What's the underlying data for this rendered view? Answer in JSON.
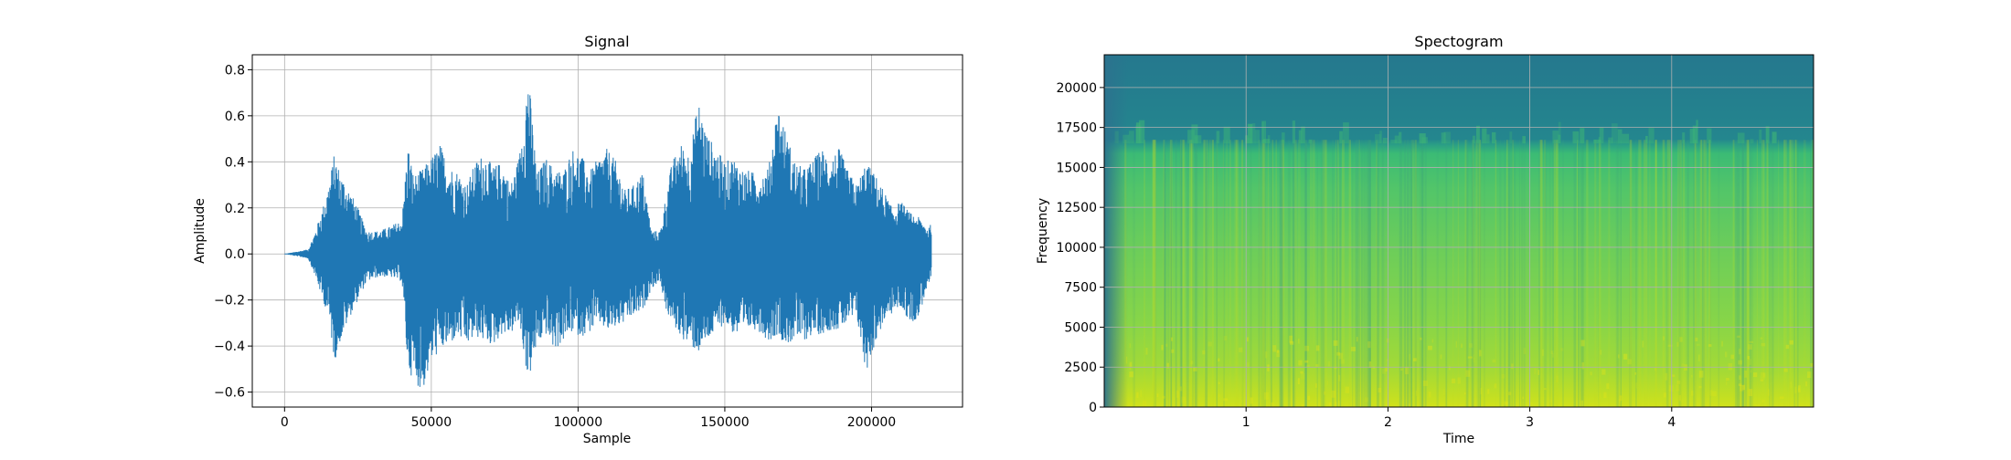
{
  "chart_data": [
    {
      "type": "line",
      "title": "Signal",
      "xlabel": "Sample",
      "ylabel": "Amplitude",
      "xlim": [
        -11000,
        231000
      ],
      "ylim": [
        -0.665,
        0.865
      ],
      "xticks": [
        0,
        50000,
        100000,
        150000,
        200000
      ],
      "xtick_labels": [
        "0",
        "50000",
        "100000",
        "150000",
        "200000"
      ],
      "yticks": [
        -0.6,
        -0.4,
        -0.2,
        0.0,
        0.2,
        0.4,
        0.6,
        0.8
      ],
      "ytick_labels": [
        "−0.6",
        "−0.4",
        "−0.2",
        "0.0",
        "0.2",
        "0.4",
        "0.6",
        "0.8"
      ],
      "grid": true,
      "color": "#1f77b4",
      "series": [
        {
          "x": [
            0,
            8000,
            10000,
            13000,
            15000,
            17000,
            19000,
            22000,
            25000,
            28000,
            32000,
            36000,
            40000,
            42000,
            44000,
            47000,
            50000,
            53000,
            56000,
            59000,
            62000,
            65000,
            68000,
            71000,
            74000,
            77000,
            80000,
            83000,
            86000,
            89000,
            92000,
            95000,
            98000,
            101000,
            104000,
            107000,
            110000,
            113000,
            116000,
            119000,
            122000,
            125000,
            128000,
            130000,
            132000,
            135000,
            138000,
            141000,
            144000,
            147000,
            150000,
            153000,
            156000,
            159000,
            162000,
            165000,
            168000,
            171000,
            174000,
            177000,
            180000,
            183000,
            186000,
            189000,
            192000,
            195000,
            198000,
            201000,
            204000,
            207000,
            210000,
            213000,
            216000,
            219000,
            220500
          ],
          "envelope_upper": [
            0.0,
            0.02,
            0.08,
            0.2,
            0.3,
            0.44,
            0.35,
            0.28,
            0.2,
            0.1,
            0.1,
            0.12,
            0.15,
            0.48,
            0.34,
            0.37,
            0.42,
            0.48,
            0.38,
            0.36,
            0.3,
            0.4,
            0.44,
            0.38,
            0.4,
            0.3,
            0.43,
            0.8,
            0.35,
            0.42,
            0.37,
            0.36,
            0.46,
            0.43,
            0.36,
            0.42,
            0.46,
            0.4,
            0.28,
            0.3,
            0.36,
            0.1,
            0.1,
            0.26,
            0.4,
            0.48,
            0.44,
            0.67,
            0.52,
            0.46,
            0.4,
            0.42,
            0.37,
            0.36,
            0.34,
            0.38,
            0.66,
            0.52,
            0.4,
            0.37,
            0.41,
            0.46,
            0.42,
            0.46,
            0.36,
            0.3,
            0.4,
            0.35,
            0.28,
            0.2,
            0.23,
            0.18,
            0.16,
            0.12,
            0.13
          ],
          "envelope_lower": [
            0.0,
            -0.02,
            -0.08,
            -0.2,
            -0.27,
            -0.47,
            -0.38,
            -0.28,
            -0.2,
            -0.12,
            -0.1,
            -0.1,
            -0.12,
            -0.5,
            -0.55,
            -0.6,
            -0.47,
            -0.42,
            -0.4,
            -0.36,
            -0.4,
            -0.36,
            -0.38,
            -0.4,
            -0.35,
            -0.35,
            -0.3,
            -0.56,
            -0.4,
            -0.35,
            -0.42,
            -0.38,
            -0.34,
            -0.36,
            -0.34,
            -0.3,
            -0.34,
            -0.32,
            -0.3,
            -0.27,
            -0.25,
            -0.15,
            -0.12,
            -0.25,
            -0.3,
            -0.36,
            -0.4,
            -0.43,
            -0.38,
            -0.34,
            -0.3,
            -0.35,
            -0.36,
            -0.32,
            -0.34,
            -0.38,
            -0.35,
            -0.4,
            -0.37,
            -0.38,
            -0.35,
            -0.35,
            -0.33,
            -0.33,
            -0.3,
            -0.28,
            -0.52,
            -0.4,
            -0.3,
            -0.26,
            -0.23,
            -0.3,
            -0.28,
            -0.14,
            -0.12
          ]
        }
      ]
    },
    {
      "type": "heatmap",
      "title": "Spectogram",
      "xlabel": "Time",
      "ylabel": "Frequency",
      "xlim": [
        0,
        5.0
      ],
      "ylim": [
        0,
        22050
      ],
      "xticks": [
        1,
        2,
        3,
        4
      ],
      "xtick_labels": [
        "1",
        "2",
        "3",
        "4"
      ],
      "yticks": [
        0,
        2500,
        5000,
        7500,
        10000,
        12500,
        15000,
        17500,
        20000
      ],
      "ytick_labels": [
        "0",
        "2500",
        "5000",
        "7500",
        "10000",
        "12500",
        "15000",
        "17500",
        "20000"
      ],
      "grid": true,
      "colormap": "viridis",
      "cutoff_frequency": 16500,
      "notes_levels": {
        "low_band_level": 0.92,
        "mid_band_level": 0.72,
        "high_band_level": 0.6,
        "above_cutoff_level": 0.4
      }
    }
  ]
}
